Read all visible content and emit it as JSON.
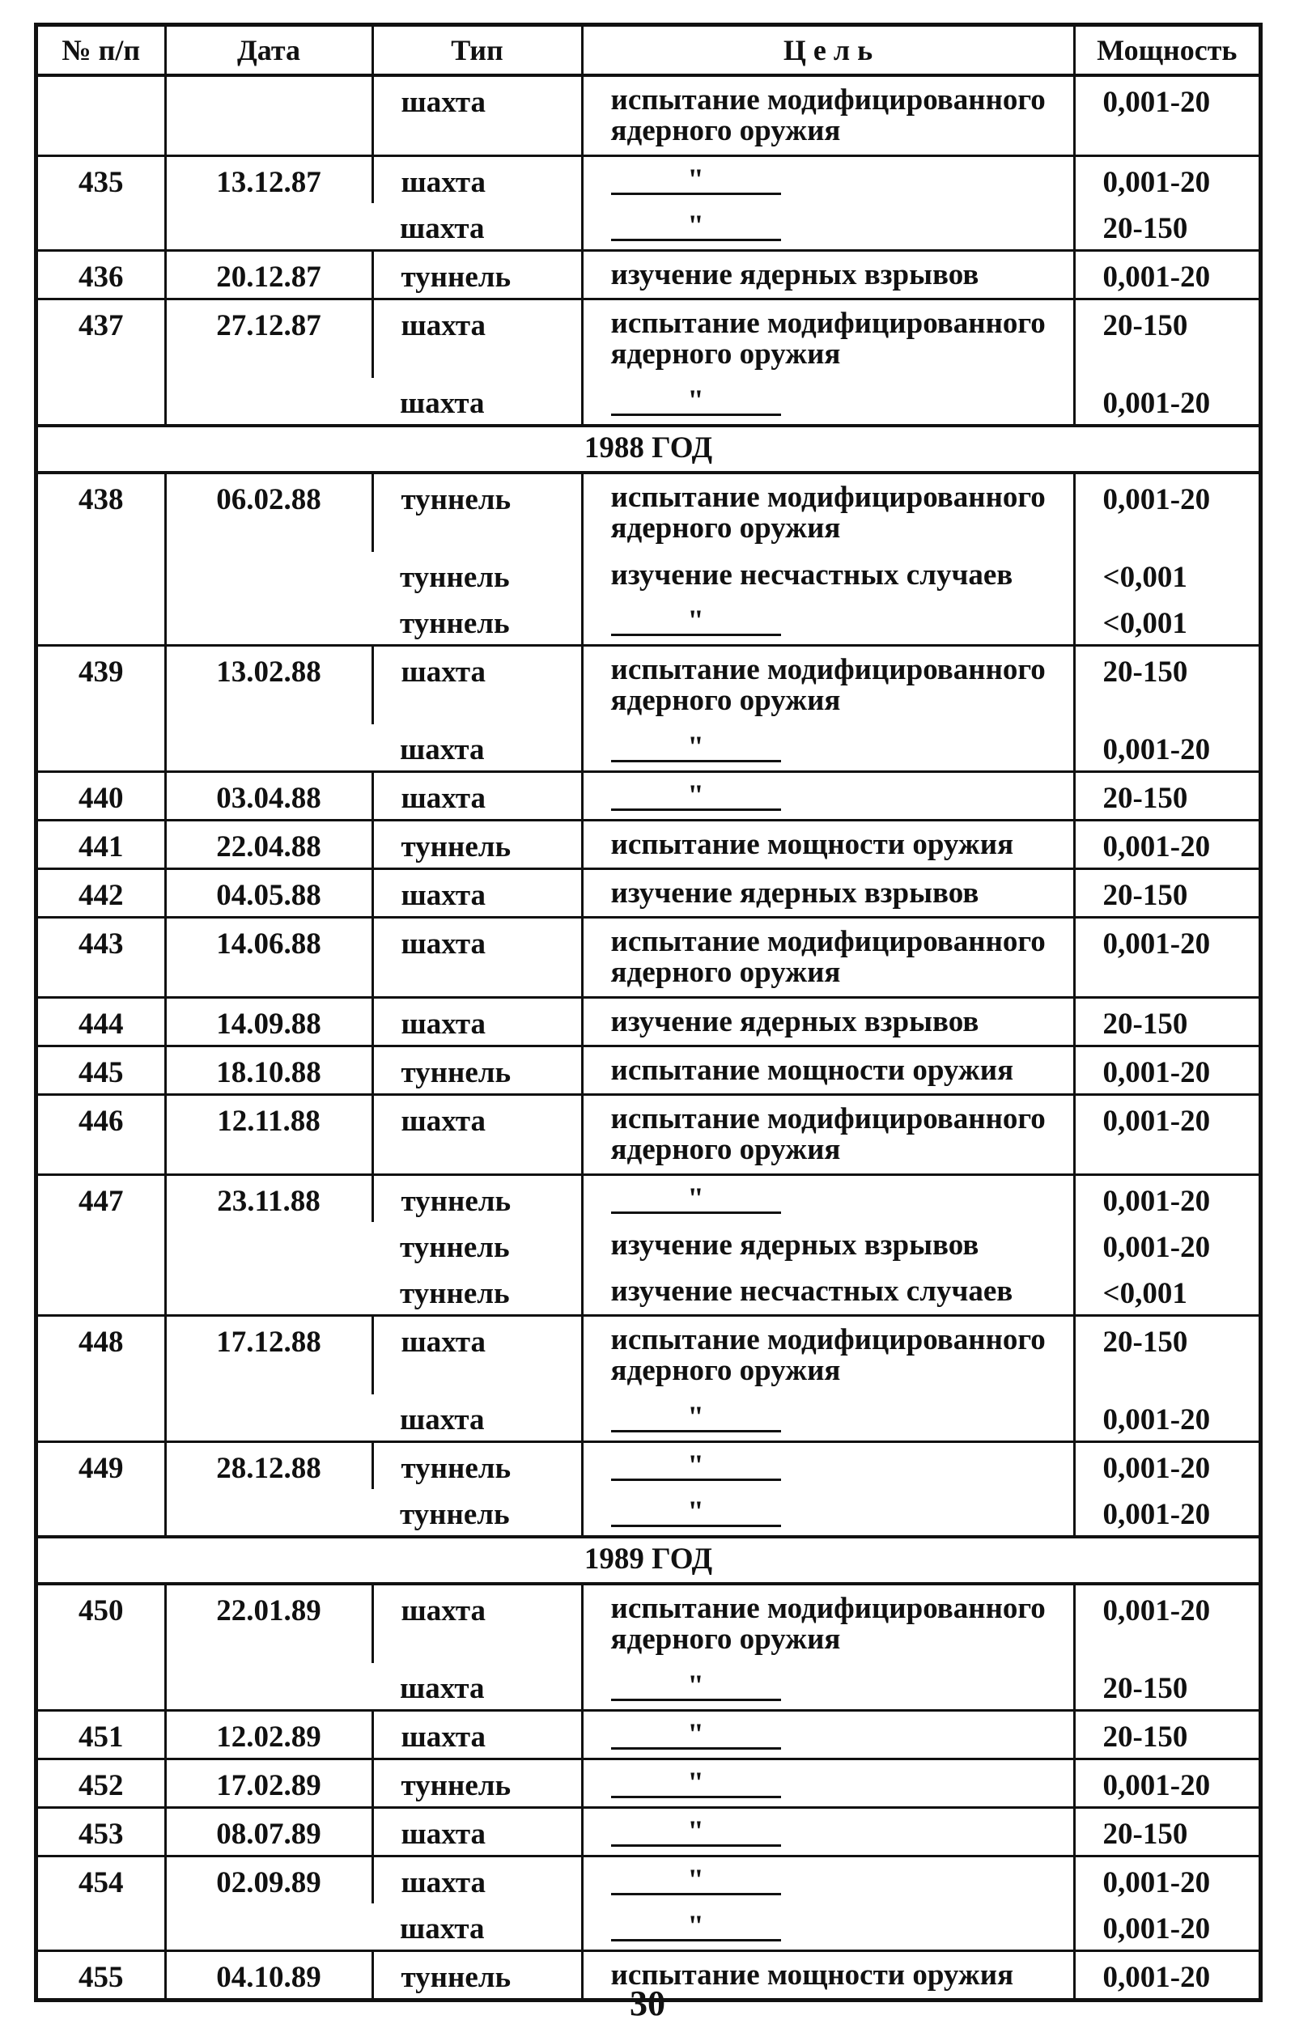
{
  "headers": [
    "№ п/п",
    "Дата",
    "Тип",
    "Ц е л ь",
    "Мощность"
  ],
  "sections": [
    {
      "year": "",
      "rows": [
        {
          "num": "",
          "date": "",
          "entries": [
            {
              "type": "шахта",
              "goal": "испытание модифицированного ядерного оружия",
              "power": "0,001-20"
            }
          ]
        },
        {
          "num": "435",
          "date": "13.12.87",
          "entries": [
            {
              "type": "шахта",
              "goal": "\"",
              "power": "0,001-20"
            },
            {
              "type": "шахта",
              "goal": "\"",
              "power": "20-150"
            }
          ]
        },
        {
          "num": "436",
          "date": "20.12.87",
          "entries": [
            {
              "type": "туннель",
              "goal": "изучение ядерных взрывов",
              "power": "0,001-20"
            }
          ]
        },
        {
          "num": "437",
          "date": "27.12.87",
          "entries": [
            {
              "type": "шахта",
              "goal": "испытание модифицированного ядерного оружия",
              "power": "20-150"
            },
            {
              "type": "шахта",
              "goal": "\"",
              "power": "0,001-20"
            }
          ]
        }
      ]
    },
    {
      "year": "1988 ГОД",
      "rows": [
        {
          "num": "438",
          "date": "06.02.88",
          "entries": [
            {
              "type": "туннель",
              "goal": "испытание модифицированного ядерного оружия",
              "power": "0,001-20"
            },
            {
              "type": "туннель",
              "goal": "изучение несчастных случаев",
              "power": "<0,001"
            },
            {
              "type": "туннель",
              "goal": "\"",
              "power": "<0,001"
            }
          ]
        },
        {
          "num": "439",
          "date": "13.02.88",
          "entries": [
            {
              "type": "шахта",
              "goal": "испытание модифицированного ядерного оружия",
              "power": "20-150"
            },
            {
              "type": "шахта",
              "goal": "\"",
              "power": "0,001-20"
            }
          ]
        },
        {
          "num": "440",
          "date": "03.04.88",
          "entries": [
            {
              "type": "шахта",
              "goal": "\"",
              "power": "20-150"
            }
          ]
        },
        {
          "num": "441",
          "date": "22.04.88",
          "entries": [
            {
              "type": "туннель",
              "goal": "испытание мощности оружия",
              "power": "0,001-20"
            }
          ]
        },
        {
          "num": "442",
          "date": "04.05.88",
          "entries": [
            {
              "type": "шахта",
              "goal": "изучение ядерных взрывов",
              "power": "20-150"
            }
          ]
        },
        {
          "num": "443",
          "date": "14.06.88",
          "entries": [
            {
              "type": "шахта",
              "goal": "испытание модифицированного ядерного оружия",
              "power": "0,001-20"
            }
          ]
        },
        {
          "num": "444",
          "date": "14.09.88",
          "entries": [
            {
              "type": "шахта",
              "goal": "изучение ядерных взрывов",
              "power": "20-150"
            }
          ]
        },
        {
          "num": "445",
          "date": "18.10.88",
          "entries": [
            {
              "type": "туннель",
              "goal": "испытание мощности оружия",
              "power": "0,001-20"
            }
          ]
        },
        {
          "num": "446",
          "date": "12.11.88",
          "entries": [
            {
              "type": "шахта",
              "goal": "испытание модифицированного ядерного оружия",
              "power": "0,001-20"
            }
          ]
        },
        {
          "num": "447",
          "date": "23.11.88",
          "entries": [
            {
              "type": "туннель",
              "goal": "\"",
              "power": "0,001-20"
            },
            {
              "type": "туннель",
              "goal": "изучение ядерных взрывов",
              "power": "0,001-20"
            },
            {
              "type": "туннель",
              "goal": "изучение несчастных случаев",
              "power": "<0,001"
            }
          ]
        },
        {
          "num": "448",
          "date": "17.12.88",
          "entries": [
            {
              "type": "шахта",
              "goal": "испытание модифицированного ядерного оружия",
              "power": "20-150"
            },
            {
              "type": "шахта",
              "goal": "\"",
              "power": "0,001-20"
            }
          ]
        },
        {
          "num": "449",
          "date": "28.12.88",
          "entries": [
            {
              "type": "туннель",
              "goal": "\"",
              "power": "0,001-20"
            },
            {
              "type": "туннель",
              "goal": "\"",
              "power": "0,001-20"
            }
          ]
        }
      ]
    },
    {
      "year": "1989 ГОД",
      "rows": [
        {
          "num": "450",
          "date": "22.01.89",
          "entries": [
            {
              "type": "шахта",
              "goal": "испытание модифицированного ядерного оружия",
              "power": "0,001-20"
            },
            {
              "type": "шахта",
              "goal": "\"",
              "power": "20-150"
            }
          ]
        },
        {
          "num": "451",
          "date": "12.02.89",
          "entries": [
            {
              "type": "шахта",
              "goal": "\"",
              "power": "20-150"
            }
          ]
        },
        {
          "num": "452",
          "date": "17.02.89",
          "entries": [
            {
              "type": "туннель",
              "goal": "\"",
              "power": "0,001-20"
            }
          ]
        },
        {
          "num": "453",
          "date": "08.07.89",
          "entries": [
            {
              "type": "шахта",
              "goal": "\"",
              "power": "20-150"
            }
          ]
        },
        {
          "num": "454",
          "date": "02.09.89",
          "entries": [
            {
              "type": "шахта",
              "goal": "\"",
              "power": "0,001-20"
            },
            {
              "type": "шахта",
              "goal": "\"",
              "power": "0,001-20"
            }
          ]
        },
        {
          "num": "455",
          "date": "04.10.89",
          "entries": [
            {
              "type": "туннель",
              "goal": "испытание мощности оружия",
              "power": "0,001-20"
            }
          ]
        }
      ]
    }
  ],
  "page_number": "30"
}
